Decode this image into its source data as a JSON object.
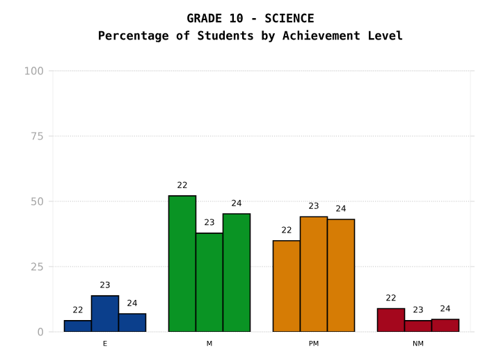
{
  "chart_data": {
    "type": "bar",
    "title": "GRADE 10 - SCIENCE",
    "subtitle": "Percentage of Students by Achievement Level",
    "categories": [
      "E",
      "M",
      "PM",
      "NM"
    ],
    "series": [
      {
        "name": "22",
        "colors": [
          "#0b3f8c",
          "#0a9424",
          "#d67c05",
          "#a4071d"
        ],
        "values": [
          4.3,
          52.1,
          34.9,
          8.9
        ]
      },
      {
        "name": "23",
        "colors": [
          "#0b3f8c",
          "#0a9424",
          "#d67c05",
          "#a4071d"
        ],
        "values": [
          13.8,
          37.8,
          44.1,
          4.3
        ]
      },
      {
        "name": "24",
        "colors": [
          "#0b3f8c",
          "#0a9424",
          "#d67c05",
          "#a4071d"
        ],
        "values": [
          6.9,
          45.2,
          43.1,
          4.8
        ]
      }
    ],
    "ylim": [
      0,
      100
    ],
    "yticks": [
      0,
      25,
      50,
      75,
      100
    ],
    "grid": "y"
  }
}
